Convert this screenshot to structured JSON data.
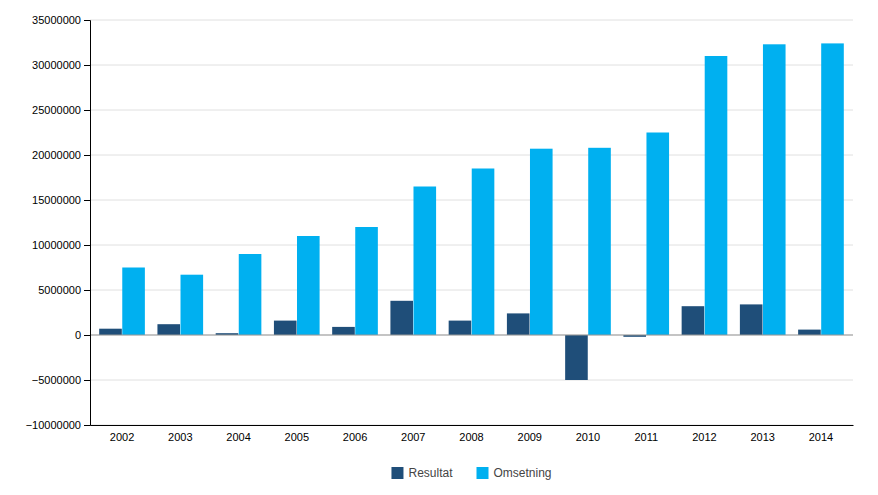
{
  "chart_data": {
    "type": "bar",
    "categories": [
      "2002",
      "2003",
      "2004",
      "2005",
      "2006",
      "2007",
      "2008",
      "2009",
      "2010",
      "2011",
      "2012",
      "2013",
      "2014"
    ],
    "series": [
      {
        "name": "Resultat",
        "color": "#1F4E79",
        "values": [
          700000,
          1200000,
          200000,
          1600000,
          900000,
          3800000,
          1600000,
          2400000,
          -5000000,
          -200000,
          3200000,
          3400000,
          600000
        ]
      },
      {
        "name": "Omsetning",
        "color": "#00B0F0",
        "values": [
          7500000,
          6700000,
          9000000,
          11000000,
          12000000,
          16500000,
          18500000,
          20700000,
          20800000,
          22500000,
          31000000,
          32300000,
          32400000
        ]
      }
    ],
    "ylim": [
      -10000000,
      35000000
    ],
    "yticks": [
      {
        "value": -10000000,
        "label": "−10000000"
      },
      {
        "value": -5000000,
        "label": "−5000000"
      },
      0,
      5000000,
      10000000,
      15000000,
      20000000,
      25000000,
      30000000,
      35000000
    ],
    "grid": true,
    "legend": "bottom"
  }
}
